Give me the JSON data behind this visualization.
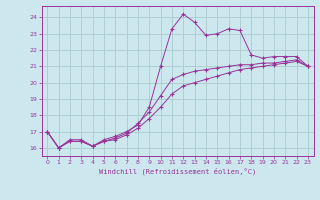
{
  "xlabel": "Windchill (Refroidissement éolien,°C)",
  "bg_color": "#cce8ee",
  "grid_color": "#aacccc",
  "line_color": "#993399",
  "spine_color": "#993399",
  "xlim": [
    -0.5,
    23.5
  ],
  "ylim": [
    15.5,
    24.7
  ],
  "xticks": [
    0,
    1,
    2,
    3,
    4,
    5,
    6,
    7,
    8,
    9,
    10,
    11,
    12,
    13,
    14,
    15,
    16,
    17,
    18,
    19,
    20,
    21,
    22,
    23
  ],
  "yticks": [
    16,
    17,
    18,
    19,
    20,
    21,
    22,
    23,
    24
  ],
  "series1_x": [
    0,
    1,
    2,
    3,
    4,
    5,
    6,
    7,
    8,
    9,
    10,
    11,
    12,
    13,
    14,
    15,
    16,
    17,
    18,
    19,
    20,
    21,
    22,
    23
  ],
  "series1_y": [
    17.0,
    16.0,
    16.5,
    16.5,
    16.1,
    16.5,
    16.7,
    17.0,
    17.4,
    18.5,
    21.0,
    23.3,
    24.2,
    23.7,
    22.9,
    23.0,
    23.3,
    23.2,
    21.7,
    21.5,
    21.6,
    21.6,
    21.6,
    21.0
  ],
  "series2_x": [
    0,
    1,
    2,
    3,
    4,
    5,
    6,
    7,
    8,
    9,
    10,
    11,
    12,
    13,
    14,
    15,
    16,
    17,
    18,
    19,
    20,
    21,
    22,
    23
  ],
  "series2_y": [
    17.0,
    16.0,
    16.4,
    16.4,
    16.1,
    16.4,
    16.5,
    16.8,
    17.2,
    17.8,
    18.5,
    19.3,
    19.8,
    20.0,
    20.2,
    20.4,
    20.6,
    20.8,
    20.9,
    21.0,
    21.1,
    21.2,
    21.3,
    21.0
  ],
  "series3_x": [
    0,
    1,
    2,
    3,
    4,
    5,
    6,
    7,
    8,
    9,
    10,
    11,
    12,
    13,
    14,
    15,
    16,
    17,
    18,
    19,
    20,
    21,
    22,
    23
  ],
  "series3_y": [
    17.0,
    16.0,
    16.4,
    16.4,
    16.1,
    16.4,
    16.6,
    16.9,
    17.5,
    18.2,
    19.2,
    20.2,
    20.5,
    20.7,
    20.8,
    20.9,
    21.0,
    21.1,
    21.1,
    21.2,
    21.2,
    21.3,
    21.4,
    21.0
  ]
}
